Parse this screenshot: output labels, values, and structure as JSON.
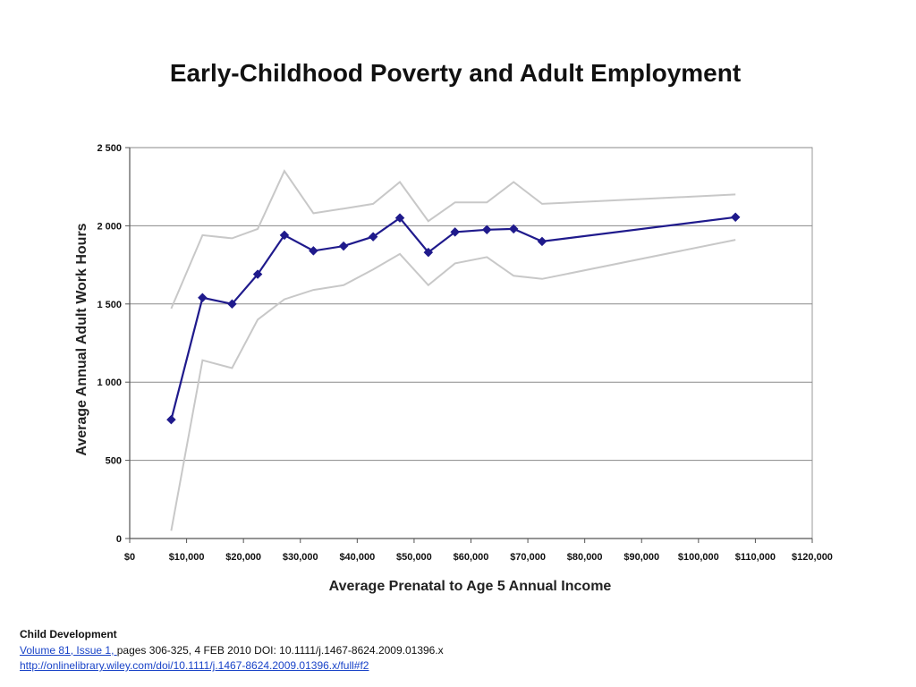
{
  "slide": {
    "title": "Early-Childhood Poverty and Adult Employment"
  },
  "chart_data": {
    "type": "line",
    "xlabel": "Average Prenatal to Age 5 Annual Income",
    "ylabel": "Average Annual Adult Work Hours",
    "xlim": [
      0,
      120000
    ],
    "ylim": [
      0,
      2500
    ],
    "x_ticks": [
      0,
      10000,
      20000,
      30000,
      40000,
      50000,
      60000,
      70000,
      80000,
      90000,
      100000,
      110000,
      120000
    ],
    "x_tick_labels": [
      "$0",
      "$10,000",
      "$20,000",
      "$30,000",
      "$40,000",
      "$50,000",
      "$60,000",
      "$70,000",
      "$80,000",
      "$90,000",
      "$100,000",
      "$110,000",
      "$120,000"
    ],
    "y_ticks": [
      0,
      500,
      1000,
      1500,
      2000,
      2500
    ],
    "y_tick_labels": [
      "0",
      "500",
      "1 000",
      "1 500",
      "2 000",
      "2 500"
    ],
    "grid": "horizontal",
    "series": [
      {
        "color": "#1f1a8c",
        "marker": "diamond",
        "x": [
          7300,
          12800,
          18000,
          22500,
          27200,
          32300,
          37600,
          42800,
          47500,
          52500,
          57200,
          62800,
          67500,
          72500,
          106500
        ],
        "y": [
          760,
          1540,
          1500,
          1690,
          1940,
          1840,
          1870,
          1930,
          2050,
          1830,
          1960,
          1975,
          1980,
          1900,
          2055
        ]
      },
      {
        "color": "#c8c8c8",
        "marker": "none",
        "x": [
          7300,
          12800,
          18000,
          22500,
          27200,
          32300,
          37600,
          42800,
          47500,
          52500,
          57200,
          62800,
          67500,
          72500,
          106500
        ],
        "y": [
          1470,
          1940,
          1920,
          1980,
          2350,
          2080,
          2110,
          2140,
          2280,
          2030,
          2150,
          2150,
          2280,
          2140,
          2200
        ]
      },
      {
        "color": "#c8c8c8",
        "marker": "none",
        "x": [
          7300,
          12800,
          18000,
          22500,
          27200,
          32300,
          37600,
          42800,
          47500,
          52500,
          57200,
          62800,
          67500,
          72500,
          106500
        ],
        "y": [
          50,
          1140,
          1090,
          1400,
          1530,
          1590,
          1620,
          1720,
          1820,
          1620,
          1760,
          1800,
          1680,
          1660,
          1910
        ]
      }
    ]
  },
  "citation": {
    "journal": "Child Development",
    "volume_link": "Volume 81, Issue 1, ",
    "details": "pages 306-325, 4 FEB 2010 DOI: 10.1111/j.1467-8624.2009.01396.x",
    "url": "http://onlinelibrary.wiley.com/doi/10.1111/j.1467-8624.2009.01396.x/full#f2"
  }
}
